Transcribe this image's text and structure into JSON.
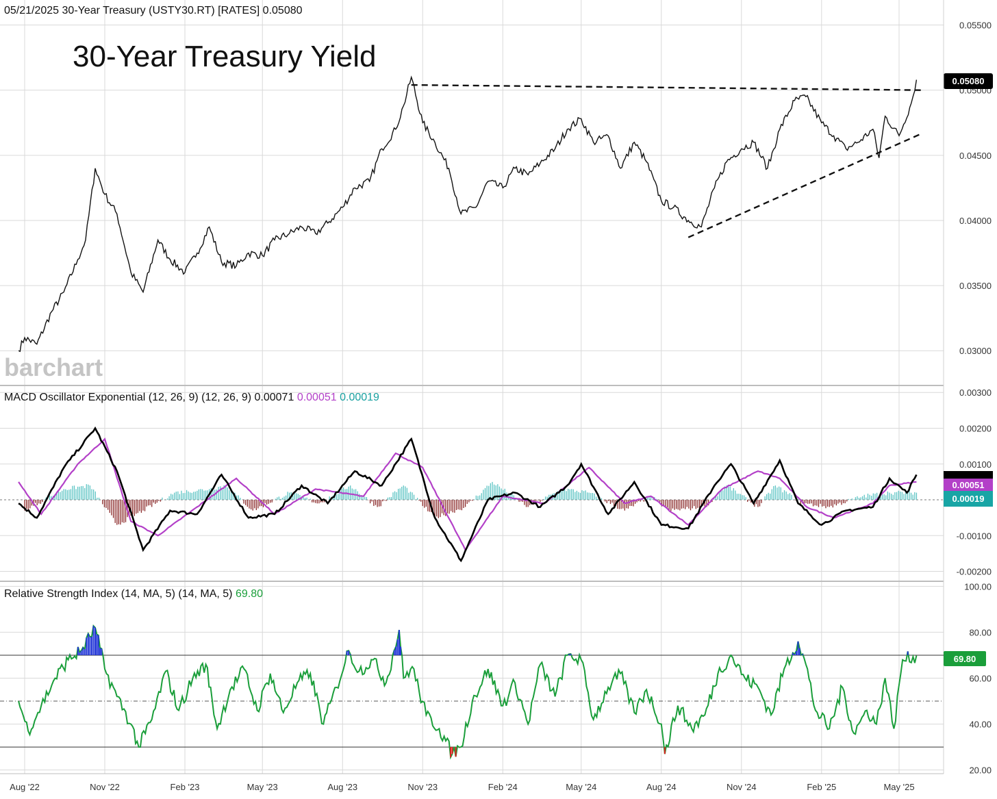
{
  "header": {
    "date": "05/21/2025",
    "symbol_text": "30-Year Treasury (USTY30.RT) [RATES]",
    "last": "0.05080"
  },
  "chart_title": "30-Year Treasury Yield",
  "watermark": "barchart",
  "colors": {
    "price": "#111111",
    "macd": "#000000",
    "signal": "#b340c8",
    "hist_pos": "#5cc4c4",
    "hist_neg": "#8b2a2a",
    "rsi": "#1a9e3a",
    "rsi_overbought": "#1f33d6",
    "rsi_oversold": "#e02020",
    "grid": "#d9d9d9"
  },
  "chart_data": [
    {
      "type": "line",
      "panel": "price",
      "title": "30-Year Treasury Yield",
      "x_ticks": [
        "Aug '22",
        "Nov '22",
        "Feb '23",
        "May '23",
        "Aug '23",
        "Nov '23",
        "Feb '24",
        "May '24",
        "Aug '24",
        "Nov '24",
        "Feb '25",
        "May '25"
      ],
      "y_ticks": [
        "0.05500",
        "0.05000",
        "0.04500",
        "0.04000",
        "0.03500",
        "0.03000"
      ],
      "ylim": [
        0.0277,
        0.0565
      ],
      "last_value_label": "0.05080",
      "series": [
        {
          "x": [
            "2022-07-25",
            "2022-08-01",
            "2022-08-15",
            "2022-09-01",
            "2022-09-15",
            "2022-10-01",
            "2022-10-10",
            "2022-10-21",
            "2022-11-01",
            "2022-11-15",
            "2022-12-01",
            "2022-12-15",
            "2023-01-01",
            "2023-01-15",
            "2023-02-01",
            "2023-02-15",
            "2023-03-01",
            "2023-03-15",
            "2023-04-01",
            "2023-04-15",
            "2023-05-01",
            "2023-05-15",
            "2023-06-01",
            "2023-06-15",
            "2023-07-01",
            "2023-07-15",
            "2023-08-01",
            "2023-08-15",
            "2023-09-01",
            "2023-09-15",
            "2023-10-01",
            "2023-10-10",
            "2023-10-19",
            "2023-11-01",
            "2023-11-15",
            "2023-12-01",
            "2023-12-15",
            "2024-01-01",
            "2024-01-15",
            "2024-02-01",
            "2024-02-15",
            "2024-03-01",
            "2024-03-15",
            "2024-04-01",
            "2024-04-15",
            "2024-05-01",
            "2024-05-15",
            "2024-06-01",
            "2024-06-15",
            "2024-07-01",
            "2024-07-15",
            "2024-08-01",
            "2024-08-15",
            "2024-09-01",
            "2024-09-16",
            "2024-10-01",
            "2024-10-15",
            "2024-11-01",
            "2024-11-15",
            "2024-12-01",
            "2024-12-15",
            "2025-01-01",
            "2025-01-14",
            "2025-02-01",
            "2025-02-15",
            "2025-03-01",
            "2025-03-15",
            "2025-04-01",
            "2025-04-08",
            "2025-04-15",
            "2025-05-01",
            "2025-05-15",
            "2025-05-21"
          ],
          "y": [
            0.03,
            0.031,
            0.0305,
            0.033,
            0.0345,
            0.037,
            0.0385,
            0.044,
            0.042,
            0.0405,
            0.036,
            0.0345,
            0.0385,
            0.037,
            0.036,
            0.0375,
            0.0395,
            0.0368,
            0.0365,
            0.0375,
            0.0373,
            0.0385,
            0.039,
            0.0395,
            0.039,
            0.0398,
            0.041,
            0.0425,
            0.043,
            0.0455,
            0.047,
            0.0488,
            0.051,
            0.0475,
            0.046,
            0.044,
            0.0405,
            0.041,
            0.043,
            0.0425,
            0.044,
            0.0435,
            0.0444,
            0.0455,
            0.047,
            0.0478,
            0.046,
            0.0465,
            0.044,
            0.046,
            0.0445,
            0.0415,
            0.041,
            0.04,
            0.0395,
            0.0425,
            0.0445,
            0.0455,
            0.046,
            0.044,
            0.047,
            0.0492,
            0.0495,
            0.0475,
            0.0465,
            0.0455,
            0.046,
            0.047,
            0.0448,
            0.048,
            0.0465,
            0.049,
            0.0508
          ]
        }
      ],
      "annotations": [
        {
          "type": "resistance-line",
          "x": [
            "2023-10-19",
            "2025-05-28"
          ],
          "y": [
            0.0504,
            0.05
          ]
        },
        {
          "type": "support-line",
          "x": [
            "2024-09-01",
            "2025-05-28"
          ],
          "y": [
            0.0387,
            0.0467
          ]
        }
      ]
    },
    {
      "type": "line",
      "panel": "macd",
      "title": "MACD Oscillator Exponential (12, 26, 9)",
      "params": "(12, 26, 9)",
      "values_label": [
        "0.00071",
        "0.00051",
        "0.00019"
      ],
      "y_ticks": [
        "0.00300",
        "0.00200",
        "0.00100",
        "-0.00100",
        "-0.00200"
      ],
      "ylim": [
        -0.0022,
        0.0031
      ],
      "series": [
        {
          "name": "MACD",
          "x": [
            "2022-07-25",
            "2022-08-15",
            "2022-09-15",
            "2022-10-21",
            "2022-11-15",
            "2022-12-15",
            "2023-01-15",
            "2023-02-15",
            "2023-03-15",
            "2023-04-15",
            "2023-05-15",
            "2023-06-15",
            "2023-07-15",
            "2023-08-15",
            "2023-09-15",
            "2023-10-19",
            "2023-11-15",
            "2023-12-15",
            "2024-01-15",
            "2024-02-15",
            "2024-03-15",
            "2024-04-15",
            "2024-05-01",
            "2024-06-01",
            "2024-07-01",
            "2024-08-01",
            "2024-09-01",
            "2024-10-01",
            "2024-10-20",
            "2024-11-15",
            "2024-12-15",
            "2025-01-05",
            "2025-02-01",
            "2025-03-01",
            "2025-04-01",
            "2025-04-20",
            "2025-05-10",
            "2025-05-21"
          ],
          "y": [
            -0.0001,
            -0.0005,
            0.0009,
            0.002,
            0.0008,
            -0.0014,
            -0.0003,
            -0.0004,
            0.0007,
            -0.0005,
            -0.0004,
            0.0004,
            -0.0001,
            0.0008,
            0.0004,
            0.0017,
            -0.0005,
            -0.0017,
            0.0,
            0.0002,
            -0.0002,
            0.0004,
            0.001,
            -0.0004,
            0.0005,
            -0.0007,
            -0.0008,
            0.0004,
            0.001,
            -0.0001,
            0.0011,
            -0.0001,
            -0.0007,
            -0.0003,
            -0.0002,
            0.0006,
            0.0002,
            0.0007
          ]
        },
        {
          "name": "Signal",
          "x": [
            "2022-07-25",
            "2022-08-20",
            "2022-10-01",
            "2022-11-01",
            "2022-12-01",
            "2023-01-01",
            "2023-02-15",
            "2023-04-01",
            "2023-05-15",
            "2023-07-01",
            "2023-08-25",
            "2023-10-01",
            "2023-11-01",
            "2023-12-20",
            "2024-02-01",
            "2024-03-20",
            "2024-05-10",
            "2024-06-20",
            "2024-07-20",
            "2024-09-01",
            "2024-10-10",
            "2024-11-20",
            "2024-12-15",
            "2025-01-15",
            "2025-02-15",
            "2025-04-01",
            "2025-04-20",
            "2025-05-21"
          ],
          "y": [
            0.0005,
            -0.0004,
            0.001,
            0.0017,
            -0.0006,
            -0.001,
            -0.0002,
            0.0006,
            -0.0004,
            0.0003,
            0.0001,
            0.0013,
            0.0009,
            -0.0014,
            0.0001,
            -0.0001,
            0.0009,
            -0.0001,
            0.0001,
            -0.0007,
            0.0003,
            0.0008,
            0.0006,
            -0.0002,
            -0.0005,
            -0.0001,
            0.0004,
            0.0005
          ]
        },
        {
          "name": "Histogram",
          "x": [
            "2022-08-01",
            "2022-09-15",
            "2022-10-15",
            "2022-11-15",
            "2022-12-15",
            "2023-01-20",
            "2023-03-01",
            "2023-03-20",
            "2023-04-20",
            "2023-06-01",
            "2023-07-05",
            "2023-08-10",
            "2023-09-10",
            "2023-10-10",
            "2023-11-15",
            "2023-12-20",
            "2024-01-20",
            "2024-03-01",
            "2024-04-10",
            "2024-05-10",
            "2024-06-20",
            "2024-07-20",
            "2024-08-10",
            "2024-09-20",
            "2024-10-15",
            "2024-11-20",
            "2024-12-10",
            "2025-01-10",
            "2025-02-10",
            "2025-03-20",
            "2025-04-20",
            "2025-05-21"
          ],
          "y": [
            -0.0003,
            0.0003,
            0.0004,
            -0.0007,
            -0.0003,
            0.0002,
            0.0003,
            0.0004,
            -0.0003,
            0.0002,
            -0.0001,
            0.0004,
            -0.0002,
            0.0004,
            -0.0005,
            -0.0002,
            0.0005,
            -0.0002,
            0.0003,
            0.0002,
            -0.0003,
            0.0001,
            -0.0003,
            -0.0002,
            0.0004,
            -0.0002,
            0.0004,
            -0.0001,
            -0.0002,
            0.0001,
            0.0002,
            0.0002
          ]
        }
      ]
    },
    {
      "type": "line",
      "panel": "rsi",
      "title": "Relative Strength Index (14, MA, 5)",
      "params": "(14, MA, 5)",
      "value_label": "69.80",
      "y_ticks": [
        "100.00",
        "80.00",
        "60.00",
        "40.00",
        "20.00"
      ],
      "ylim": [
        19,
        101
      ],
      "levels": [
        70,
        50,
        30
      ],
      "series": [
        {
          "name": "RSI",
          "x": [
            "2022-07-25",
            "2022-08-05",
            "2022-08-20",
            "2022-09-05",
            "2022-09-20",
            "2022-10-05",
            "2022-10-21",
            "2022-11-01",
            "2022-11-15",
            "2022-12-01",
            "2022-12-10",
            "2022-12-25",
            "2023-01-10",
            "2023-01-25",
            "2023-02-10",
            "2023-02-25",
            "2023-03-10",
            "2023-03-25",
            "2023-04-10",
            "2023-04-25",
            "2023-05-10",
            "2023-05-25",
            "2023-06-10",
            "2023-06-25",
            "2023-07-10",
            "2023-07-25",
            "2023-08-08",
            "2023-08-20",
            "2023-09-05",
            "2023-09-20",
            "2023-10-05",
            "2023-10-10",
            "2023-10-20",
            "2023-11-05",
            "2023-11-20",
            "2023-12-05",
            "2023-12-15",
            "2023-12-28",
            "2024-01-15",
            "2024-02-01",
            "2024-02-15",
            "2024-03-01",
            "2024-03-15",
            "2024-04-01",
            "2024-04-15",
            "2024-05-01",
            "2024-05-15",
            "2024-06-01",
            "2024-06-15",
            "2024-07-01",
            "2024-07-15",
            "2024-08-01",
            "2024-08-05",
            "2024-08-20",
            "2024-09-05",
            "2024-09-20",
            "2024-10-05",
            "2024-10-20",
            "2024-11-05",
            "2024-11-20",
            "2024-12-05",
            "2024-12-20",
            "2025-01-05",
            "2025-01-14",
            "2025-01-25",
            "2025-02-10",
            "2025-02-25",
            "2025-03-10",
            "2025-03-25",
            "2025-04-05",
            "2025-04-15",
            "2025-04-25",
            "2025-05-05",
            "2025-05-21"
          ],
          "y": [
            50,
            37,
            48,
            60,
            68,
            72,
            82,
            64,
            52,
            40,
            30,
            42,
            63,
            46,
            60,
            66,
            38,
            55,
            64,
            46,
            62,
            45,
            58,
            62,
            40,
            56,
            72,
            63,
            68,
            58,
            81,
            60,
            65,
            44,
            38,
            27,
            30,
            50,
            64,
            48,
            58,
            40,
            66,
            52,
            70,
            68,
            42,
            56,
            62,
            45,
            55,
            40,
            27,
            48,
            38,
            44,
            62,
            70,
            60,
            56,
            44,
            64,
            76,
            66,
            46,
            38,
            56,
            36,
            46,
            40,
            60,
            38,
            68,
            69.8
          ]
        }
      ]
    }
  ]
}
